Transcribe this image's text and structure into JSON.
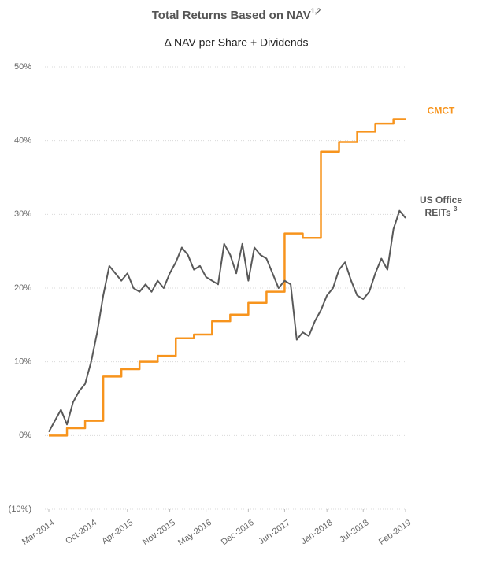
{
  "chart_data": {
    "type": "line",
    "title": "Total Returns Based on NAV",
    "title_superscript": "1,2",
    "subtitle": "Δ NAV per Share + Dividends",
    "x": [
      "2014-03",
      "2014-04",
      "2014-05",
      "2014-06",
      "2014-07",
      "2014-08",
      "2014-09",
      "2014-10",
      "2014-11",
      "2014-12",
      "2015-01",
      "2015-02",
      "2015-03",
      "2015-04",
      "2015-05",
      "2015-06",
      "2015-07",
      "2015-08",
      "2015-09",
      "2015-10",
      "2015-11",
      "2015-12",
      "2016-01",
      "2016-02",
      "2016-03",
      "2016-04",
      "2016-05",
      "2016-06",
      "2016-07",
      "2016-08",
      "2016-09",
      "2016-10",
      "2016-11",
      "2016-12",
      "2017-01",
      "2017-02",
      "2017-03",
      "2017-04",
      "2017-05",
      "2017-06",
      "2017-07",
      "2017-08",
      "2017-09",
      "2017-10",
      "2017-11",
      "2017-12",
      "2018-01",
      "2018-02",
      "2018-03",
      "2018-04",
      "2018-05",
      "2018-06",
      "2018-07",
      "2018-08",
      "2018-09",
      "2018-10",
      "2018-11",
      "2018-12",
      "2019-01",
      "2019-02"
    ],
    "series": [
      {
        "name": "CMCT",
        "color": "#f7941d",
        "step": true,
        "values": [
          0,
          0,
          0,
          1,
          1,
          1,
          2,
          2,
          2,
          8,
          8,
          8,
          9,
          9,
          9,
          10,
          10,
          10,
          10.8,
          10.8,
          10.8,
          13.2,
          13.2,
          13.2,
          13.7,
          13.7,
          13.7,
          15.5,
          15.5,
          15.5,
          16.4,
          16.4,
          16.4,
          18,
          18,
          18,
          19.5,
          19.5,
          19.5,
          27.4,
          27.4,
          27.4,
          26.8,
          26.8,
          26.8,
          38.5,
          38.5,
          38.5,
          39.8,
          39.8,
          39.8,
          41.2,
          41.2,
          41.2,
          42.3,
          42.3,
          42.3,
          42.9,
          42.9,
          42.9
        ]
      },
      {
        "name": "US Office REITs",
        "footnote": "3",
        "color": "#595959",
        "step": false,
        "values": [
          0.5,
          2,
          3.5,
          1.5,
          4.5,
          6,
          7,
          10,
          14,
          19,
          23,
          22,
          21,
          22,
          20,
          19.5,
          20.5,
          19.5,
          21,
          20,
          22,
          23.5,
          25.5,
          24.5,
          22.5,
          23,
          21.5,
          21,
          20.5,
          26,
          24.5,
          22,
          26,
          21,
          25.5,
          24.5,
          24,
          22,
          20,
          21,
          20.5,
          13,
          14,
          13.5,
          15.5,
          17,
          19,
          20,
          22.5,
          23.5,
          21,
          19,
          18.5,
          19.5,
          22,
          24,
          22.5,
          28,
          30.5,
          29.5
        ]
      }
    ],
    "xlim": [
      "2014-03",
      "2019-02"
    ],
    "xticks": [
      {
        "value": "2014-03",
        "label": "Mar-2014"
      },
      {
        "value": "2014-10",
        "label": "Oct-2014"
      },
      {
        "value": "2015-04",
        "label": "Apr-2015"
      },
      {
        "value": "2015-11",
        "label": "Nov-2015"
      },
      {
        "value": "2016-05",
        "label": "May-2016"
      },
      {
        "value": "2016-12",
        "label": "Dec-2016"
      },
      {
        "value": "2017-06",
        "label": "Jun-2017"
      },
      {
        "value": "2018-01",
        "label": "Jan-2018"
      },
      {
        "value": "2018-07",
        "label": "Jul-2018"
      },
      {
        "value": "2019-02",
        "label": "Feb-2019"
      }
    ],
    "ylim": [
      -10,
      50
    ],
    "yticks": [
      {
        "value": -10,
        "label": "(10%)"
      },
      {
        "value": 0,
        "label": "0%"
      },
      {
        "value": 10,
        "label": "10%"
      },
      {
        "value": 20,
        "label": "20%"
      },
      {
        "value": 30,
        "label": "30%"
      },
      {
        "value": 40,
        "label": "40%"
      },
      {
        "value": 50,
        "label": "50%"
      }
    ],
    "grid": true
  }
}
